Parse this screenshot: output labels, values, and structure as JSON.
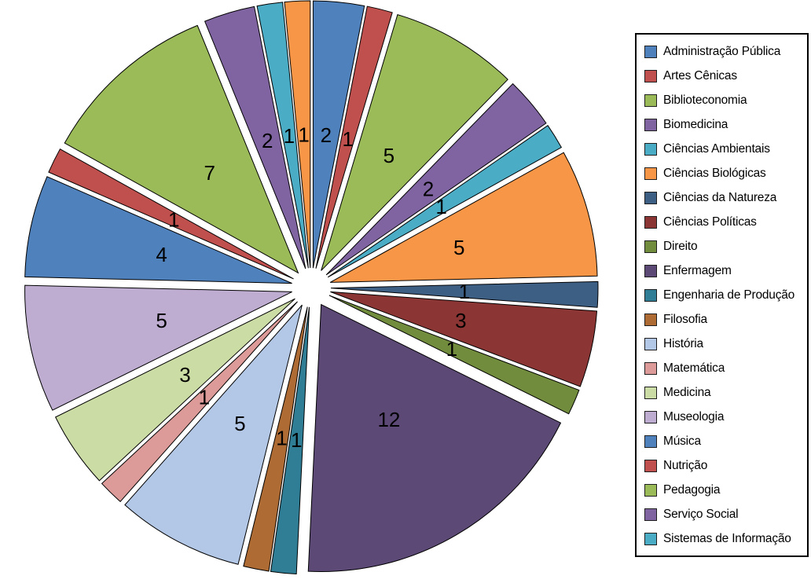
{
  "window": {
    "background_color": "#FFFFFF"
  },
  "chart_data": {
    "type": "pie",
    "direction": "clockwise",
    "start_angle_deg": 0,
    "exploded": true,
    "data_labels": "values",
    "total_units": 65,
    "slices": [
      {
        "label": "Administração Pública",
        "value": 2,
        "color": "#4F81BD",
        "in_legend": true
      },
      {
        "label": "Artes Cênicas",
        "value": 1,
        "color": "#C0504D",
        "in_legend": true
      },
      {
        "label": "Biblioteconomia",
        "value": 5,
        "color": "#9BBB59",
        "in_legend": true
      },
      {
        "label": "Biomedicina",
        "value": 2,
        "color": "#8064A2",
        "in_legend": true
      },
      {
        "label": "Ciências Ambientais",
        "value": 1,
        "color": "#4BACC6",
        "in_legend": true
      },
      {
        "label": "Ciências Biológicas",
        "value": 5,
        "color": "#F79646",
        "in_legend": true
      },
      {
        "label": "Ciências da Natureza",
        "value": 1,
        "color": "#3E5F84",
        "in_legend": true
      },
      {
        "label": "Ciências Políticas",
        "value": 3,
        "color": "#8B3634",
        "in_legend": true
      },
      {
        "label": "Direito",
        "value": 1,
        "color": "#718C3C",
        "in_legend": true
      },
      {
        "label": "Enfermagem",
        "value": 12,
        "color": "#5C4976",
        "in_legend": true
      },
      {
        "label": "Engenharia de Produção",
        "value": 1,
        "color": "#2F7E95",
        "in_legend": true
      },
      {
        "label": "Filosofia",
        "value": 1,
        "color": "#AE6B33",
        "in_legend": true
      },
      {
        "label": "História",
        "value": 5,
        "color": "#B3C7E6",
        "in_legend": true
      },
      {
        "label": "Matemática",
        "value": 1,
        "color": "#DC9B98",
        "in_legend": true
      },
      {
        "label": "Medicina",
        "value": 3,
        "color": "#CCDCA5",
        "in_legend": true
      },
      {
        "label": "Museologia",
        "value": 5,
        "color": "#BEADD1",
        "in_legend": true
      },
      {
        "label": "Música",
        "value": 4,
        "color": "#4F81BD",
        "in_legend": true
      },
      {
        "label": "Nutrição",
        "value": 1,
        "color": "#C0504D",
        "in_legend": true
      },
      {
        "label": "Pedagogia",
        "value": 7,
        "color": "#9BBB59",
        "in_legend": true
      },
      {
        "label": "Serviço Social",
        "value": 2,
        "color": "#8064A2",
        "in_legend": true
      },
      {
        "label": "Sistemas de Informação",
        "value": 1,
        "color": "#4BACC6",
        "in_legend": true
      },
      {
        "label": "",
        "value": 1,
        "color": "#F79646",
        "in_legend": false
      }
    ],
    "legend": {
      "position": "right",
      "border_color": "#000000",
      "background": "#FFFFFF",
      "text_color": "#000000"
    }
  }
}
